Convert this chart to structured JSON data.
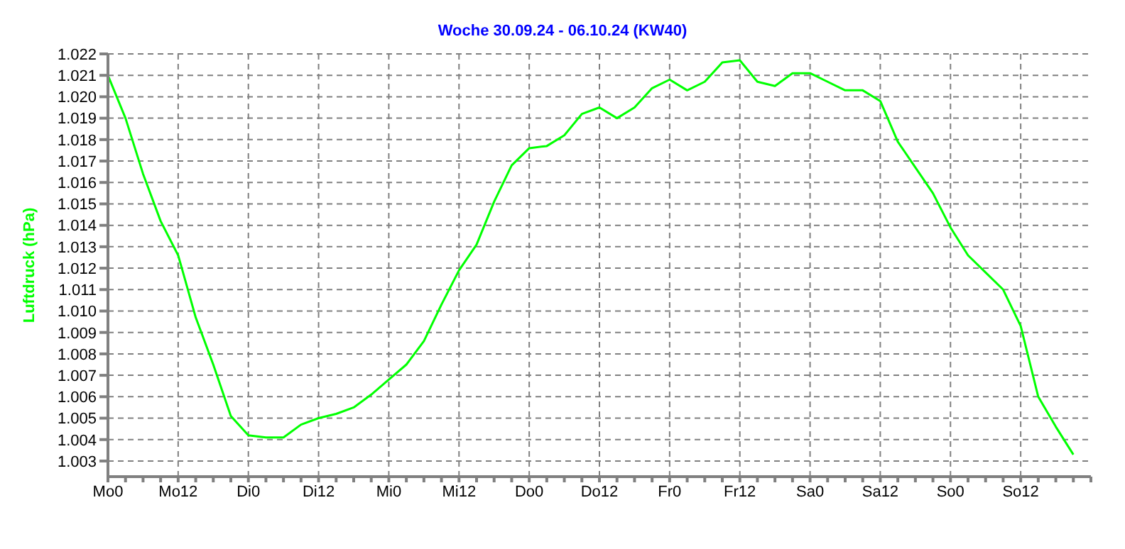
{
  "chart_data": {
    "type": "line",
    "title": "Woche 30.09.24 - 06.10.24 (KW40)",
    "ylabel": "Luftdruck (hPa)",
    "categories": [
      "Mo0",
      null,
      null,
      null,
      "Mo12",
      null,
      null,
      null,
      "Di0",
      null,
      null,
      null,
      "Di12",
      null,
      null,
      null,
      "Mi0",
      null,
      null,
      null,
      "Mi12",
      null,
      null,
      null,
      "Do0",
      null,
      null,
      null,
      "Do12",
      null,
      null,
      null,
      "Fr0",
      null,
      null,
      null,
      "Fr12",
      null,
      null,
      null,
      "Sa0",
      null,
      null,
      null,
      "Sa12",
      null,
      null,
      null,
      "So0",
      null,
      null,
      null,
      "So12",
      null,
      null,
      null,
      null
    ],
    "series": [
      {
        "color": "#00ff00",
        "values": [
          1.021,
          1.019,
          1.0164,
          1.0142,
          1.0126,
          1.0097,
          1.0075,
          1.0051,
          1.0042,
          1.0041,
          1.0041,
          1.0047,
          1.005,
          1.0052,
          1.0055,
          1.0061,
          1.0068,
          1.0075,
          1.0086,
          1.0103,
          1.0119,
          1.0131,
          1.0151,
          1.0168,
          1.0176,
          1.0177,
          1.0182,
          1.0192,
          1.0195,
          1.019,
          1.0195,
          1.0204,
          1.0208,
          1.0203,
          1.0207,
          1.0216,
          1.0217,
          1.0207,
          1.0205,
          1.0211,
          1.0211,
          1.0207,
          1.0203,
          1.0203,
          1.0198,
          1.0179,
          1.0167,
          1.0155,
          1.0139,
          1.0126,
          1.0118,
          1.011,
          1.0093,
          1.006,
          1.0046,
          1.0033,
          null
        ]
      }
    ],
    "ylim": [
      1.00227,
      1.022
    ],
    "yticks": [
      1.003,
      1.004,
      1.005,
      1.006,
      1.007,
      1.008,
      1.009,
      {
        "value": 1.01,
        "label": "1.010"
      },
      1.011,
      1.012,
      1.013,
      1.014,
      1.015,
      1.016,
      1.017,
      1.018,
      1.019,
      {
        "value": 1.02,
        "label": "1.020"
      },
      1.021,
      1.022
    ],
    "grid": true,
    "legend": false,
    "marker": "none",
    "line_style": "solid"
  }
}
